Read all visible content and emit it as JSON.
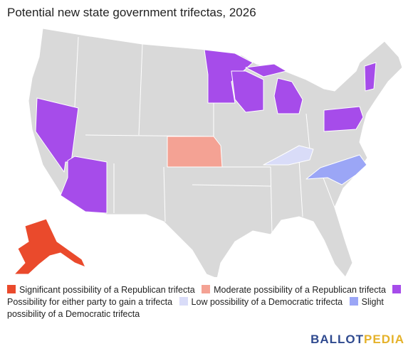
{
  "title": "Potential new state government trifectas, 2026",
  "legend": [
    {
      "label": "Significant possibility of a Republican trifecta",
      "color": "#ea4a2c"
    },
    {
      "label": "Moderate possibility of a Republican trifecta",
      "color": "#f4a294"
    },
    {
      "label": "Possibility for either party to gain a trifecta",
      "color": "#a64cea"
    },
    {
      "label": "Low possibility of a Democratic trifecta",
      "color": "#d9dcf8"
    },
    {
      "label": "Slight possibility of a Democratic trifecta",
      "color": "#9ba6f6"
    }
  ],
  "logo": [
    "BALLOT",
    "PEDIA"
  ]
}
